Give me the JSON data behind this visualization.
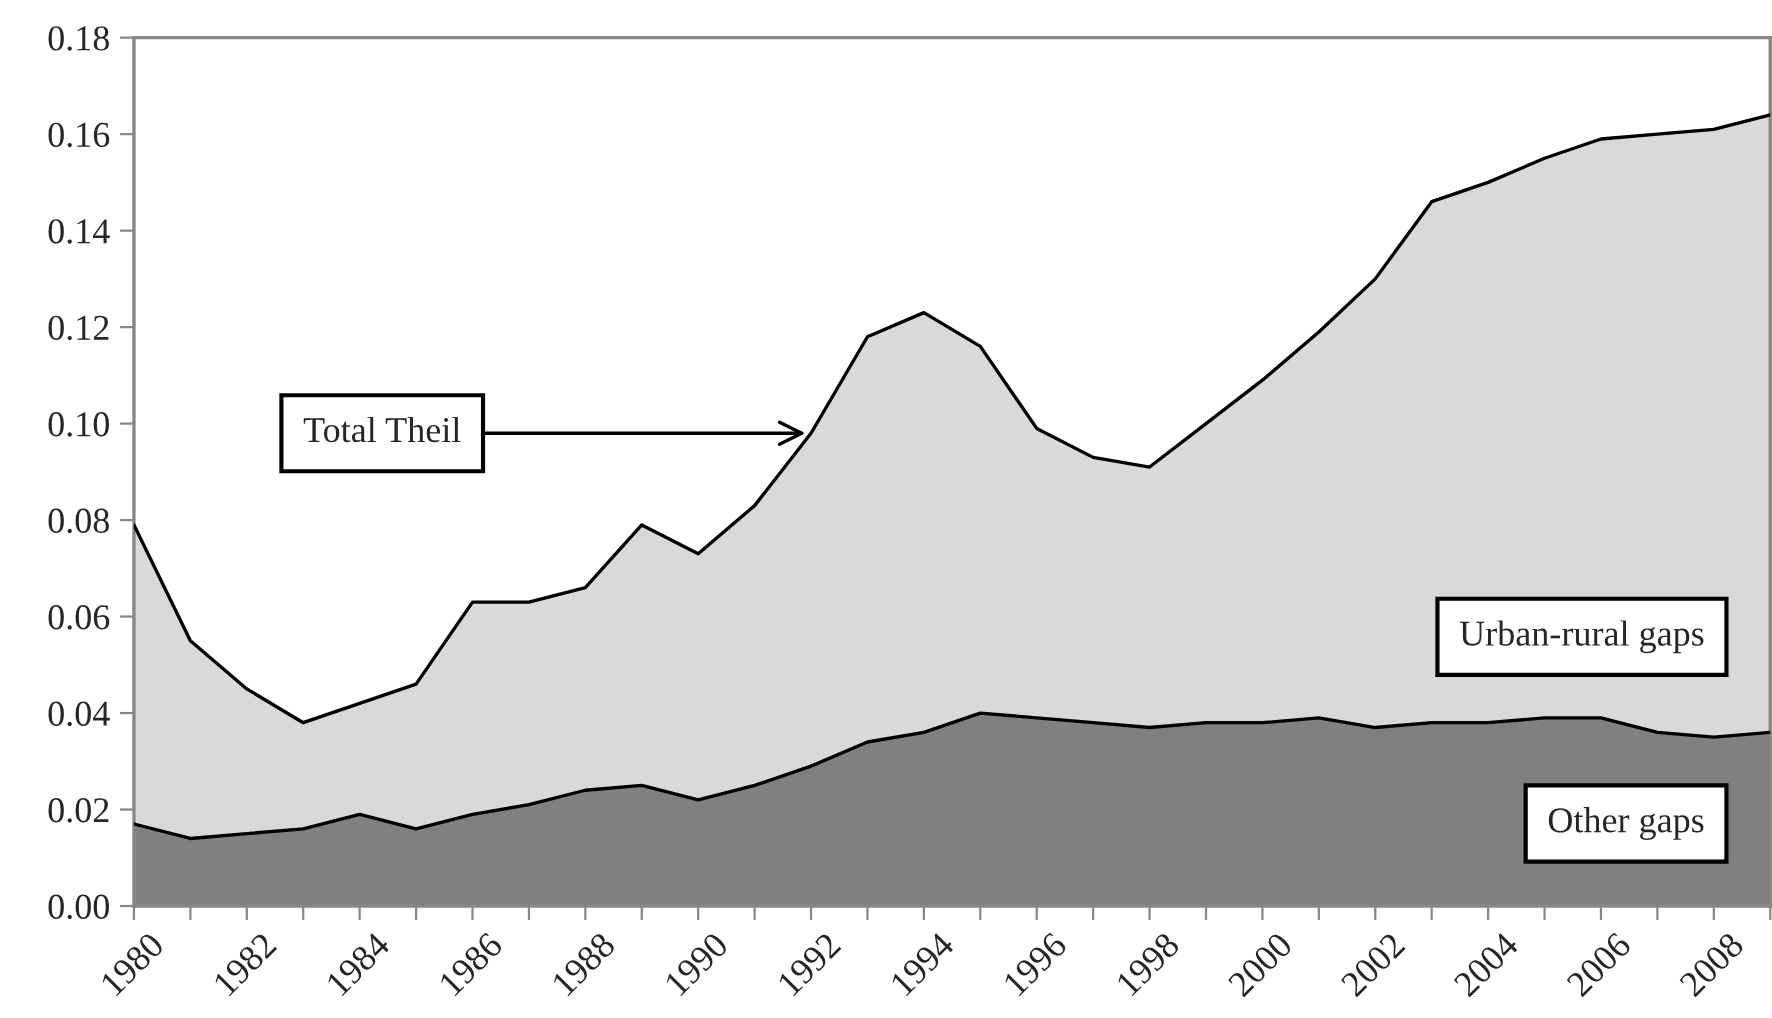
{
  "chart_data": {
    "type": "area",
    "stacked": true,
    "x": [
      1980,
      1981,
      1982,
      1983,
      1984,
      1985,
      1986,
      1987,
      1988,
      1989,
      1990,
      1991,
      1992,
      1993,
      1994,
      1995,
      1996,
      1997,
      1998,
      1999,
      2000,
      2001,
      2002,
      2003,
      2004,
      2005,
      2006,
      2007,
      2008,
      2009
    ],
    "series": [
      {
        "name": "Other gaps",
        "color": "#808080",
        "values": [
          0.017,
          0.014,
          0.015,
          0.016,
          0.019,
          0.016,
          0.019,
          0.021,
          0.024,
          0.025,
          0.022,
          0.025,
          0.029,
          0.034,
          0.036,
          0.04,
          0.039,
          0.038,
          0.037,
          0.038,
          0.038,
          0.039,
          0.037,
          0.038,
          0.038,
          0.039,
          0.039,
          0.036,
          0.035,
          0.036
        ]
      },
      {
        "name": "Urban-rural gaps",
        "color": "#d9d9d9",
        "values": [
          0.062,
          0.041,
          0.03,
          0.022,
          0.023,
          0.03,
          0.044,
          0.042,
          0.042,
          0.054,
          0.051,
          0.058,
          0.069,
          0.084,
          0.087,
          0.076,
          0.06,
          0.055,
          0.054,
          0.062,
          0.071,
          0.08,
          0.093,
          0.108,
          0.112,
          0.116,
          0.12,
          0.124,
          0.126,
          0.128
        ]
      }
    ],
    "annotations": [
      {
        "text": "Total Theil",
        "x": 1992,
        "y": 0.098
      }
    ],
    "xlim": [
      1980,
      2009
    ],
    "xticks": [
      1980,
      {
        "value": 1981,
        "label": null
      },
      1982,
      {
        "value": 1983,
        "label": null
      },
      1984,
      {
        "value": 1985,
        "label": null
      },
      1986,
      {
        "value": 1987,
        "label": null
      },
      1988,
      {
        "value": 1989,
        "label": null
      },
      1990,
      {
        "value": 1991,
        "label": null
      },
      1992,
      {
        "value": 1993,
        "label": null
      },
      1994,
      {
        "value": 1995,
        "label": null
      },
      1996,
      {
        "value": 1997,
        "label": null
      },
      1998,
      {
        "value": 1999,
        "label": null
      },
      2000,
      {
        "value": 2001,
        "label": null
      },
      2002,
      {
        "value": 2003,
        "label": null
      },
      2004,
      {
        "value": 2005,
        "label": null
      },
      2006,
      {
        "value": 2007,
        "label": null
      },
      2008,
      {
        "value": 2009,
        "label": null
      }
    ],
    "ylim": [
      0,
      0.18
    ],
    "yticks": [
      {
        "value": 0,
        "label": "0.00"
      },
      {
        "value": 0.02,
        "label": "0.02"
      },
      {
        "value": 0.04,
        "label": "0.04"
      },
      {
        "value": 0.06,
        "label": "0.06"
      },
      {
        "value": 0.08,
        "label": "0.08"
      },
      {
        "value": 0.1,
        "label": "0.10"
      },
      {
        "value": 0.12,
        "label": "0.12"
      },
      {
        "value": 0.14,
        "label": "0.14"
      },
      {
        "value": 0.16,
        "label": "0.16"
      },
      {
        "value": 0.18,
        "label": "0.18"
      }
    ],
    "grid": false
  }
}
